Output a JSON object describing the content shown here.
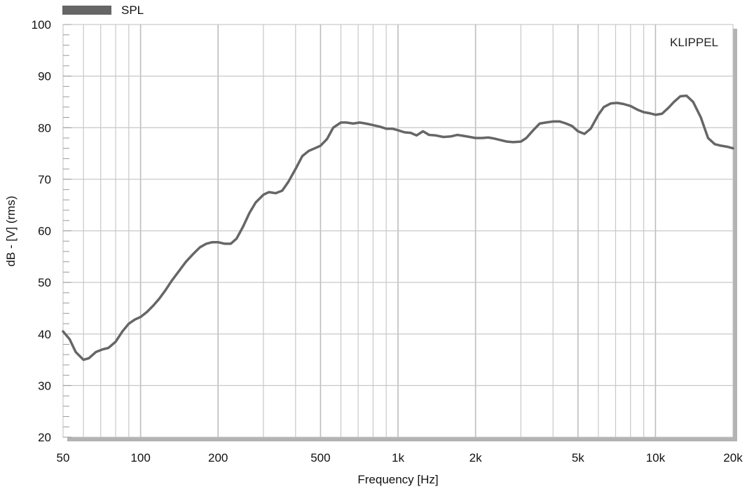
{
  "chart_data": {
    "type": "line",
    "title": "",
    "xlabel": "Frequency [Hz]",
    "ylabel": "dB - [V]  (rms)",
    "xscale": "log",
    "xlim": [
      50,
      20000
    ],
    "ylim": [
      20,
      100
    ],
    "grid": true,
    "legend_position": "top-left",
    "watermark": "KLIPPEL",
    "x_ticks": [
      {
        "value": 50,
        "label": "50"
      },
      {
        "value": 100,
        "label": "100"
      },
      {
        "value": 200,
        "label": "200"
      },
      {
        "value": 500,
        "label": "500"
      },
      {
        "value": 1000,
        "label": "1k"
      },
      {
        "value": 2000,
        "label": "2k"
      },
      {
        "value": 5000,
        "label": "5k"
      },
      {
        "value": 10000,
        "label": "10k"
      },
      {
        "value": 20000,
        "label": "20k"
      }
    ],
    "y_ticks": [
      {
        "value": 20,
        "label": "20"
      },
      {
        "value": 30,
        "label": "30"
      },
      {
        "value": 40,
        "label": "40"
      },
      {
        "value": 50,
        "label": "50"
      },
      {
        "value": 60,
        "label": "60"
      },
      {
        "value": 70,
        "label": "70"
      },
      {
        "value": 80,
        "label": "80"
      },
      {
        "value": 90,
        "label": "90"
      },
      {
        "value": 100,
        "label": "100"
      }
    ],
    "series": [
      {
        "name": "SPL",
        "color": "#666666",
        "x": [
          50,
          53,
          56,
          60,
          63,
          67,
          71,
          75,
          80,
          85,
          90,
          95,
          100,
          106,
          112,
          118,
          125,
          132,
          140,
          150,
          160,
          170,
          180,
          190,
          200,
          212,
          224,
          236,
          250,
          265,
          280,
          300,
          315,
          335,
          355,
          375,
          400,
          425,
          450,
          475,
          500,
          530,
          560,
          600,
          630,
          670,
          710,
          750,
          800,
          850,
          900,
          950,
          1000,
          1060,
          1120,
          1180,
          1250,
          1320,
          1400,
          1500,
          1600,
          1700,
          1800,
          1900,
          2000,
          2120,
          2240,
          2360,
          2500,
          2650,
          2800,
          3000,
          3150,
          3350,
          3550,
          3750,
          4000,
          4250,
          4500,
          4750,
          5000,
          5300,
          5600,
          6000,
          6300,
          6700,
          7100,
          7500,
          8000,
          8500,
          9000,
          9500,
          10000,
          10600,
          11200,
          11800,
          12500,
          13200,
          14000,
          15000,
          16000,
          17000,
          18000,
          19000,
          20000
        ],
        "y": [
          40.5,
          39.0,
          36.5,
          35.0,
          35.3,
          36.5,
          37.0,
          37.3,
          38.5,
          40.5,
          42.0,
          42.8,
          43.3,
          44.3,
          45.5,
          46.8,
          48.5,
          50.3,
          52.0,
          54.0,
          55.5,
          56.8,
          57.5,
          57.8,
          57.8,
          57.5,
          57.5,
          58.5,
          60.8,
          63.5,
          65.5,
          67.0,
          67.5,
          67.3,
          67.8,
          69.5,
          72.0,
          74.5,
          75.5,
          76.0,
          76.5,
          77.8,
          80.0,
          81.0,
          81.0,
          80.8,
          81.0,
          80.8,
          80.5,
          80.2,
          79.8,
          79.8,
          79.5,
          79.1,
          79.0,
          78.5,
          79.3,
          78.6,
          78.5,
          78.2,
          78.3,
          78.6,
          78.4,
          78.2,
          78.0,
          78.0,
          78.1,
          77.9,
          77.6,
          77.3,
          77.2,
          77.3,
          78.0,
          79.5,
          80.8,
          81.0,
          81.2,
          81.2,
          80.8,
          80.3,
          79.3,
          78.8,
          79.8,
          82.5,
          84.0,
          84.7,
          84.8,
          84.6,
          84.2,
          83.5,
          83.0,
          82.8,
          82.5,
          82.7,
          83.8,
          85.0,
          86.1,
          86.2,
          85.0,
          82.0,
          78.0,
          76.8,
          76.5,
          76.3,
          76.0
        ]
      }
    ]
  }
}
